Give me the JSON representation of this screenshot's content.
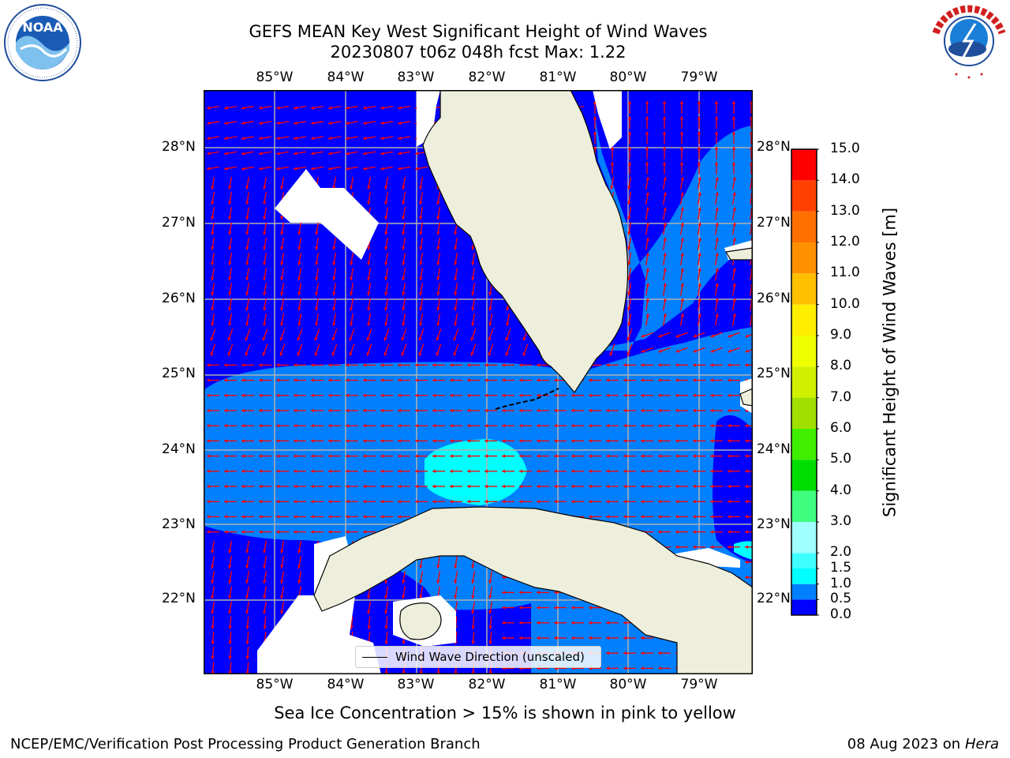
{
  "title_line1": "GEFS MEAN Key West Significant Height of Wind Waves",
  "title_line2": "20230807 t06z 048h fcst   Max: 1.22",
  "lon_labels": [
    "85°W",
    "84°W",
    "83°W",
    "82°W",
    "81°W",
    "80°W",
    "79°W"
  ],
  "lat_labels": [
    "28°N",
    "27°N",
    "26°N",
    "25°N",
    "24°N",
    "23°N",
    "22°N"
  ],
  "legend_label": "Wind Wave Direction (unscaled)",
  "colorbar": {
    "label": "Significant Height of Wind Waves [m]",
    "ticks": [
      "0.0",
      "0.5",
      "1.0",
      "1.5",
      "2.0",
      "3.0",
      "4.0",
      "5.0",
      "6.0",
      "7.0",
      "8.0",
      "9.0",
      "10.0",
      "11.0",
      "12.0",
      "13.0",
      "14.0",
      "15.0"
    ],
    "colors": [
      "#0000ff",
      "#0080ff",
      "#00ffff",
      "#40ffff",
      "#a0ffff",
      "#40ff80",
      "#00dd00",
      "#40ee00",
      "#a0e000",
      "#d0f000",
      "#f0ff00",
      "#ffee00",
      "#ffc000",
      "#ff9000",
      "#ff7000",
      "#ff4000",
      "#ff0000"
    ]
  },
  "caption": "Sea Ice Concentration > 15% is shown in pink to yellow",
  "footer_left": "NCEP/EMC/Verification Post Processing Product Generation Branch",
  "footer_right_date": "08 Aug 2023 on",
  "footer_right_host": "Hera",
  "logos": {
    "noaa": "NOAA",
    "nws": "NATIONAL WEATHER SERVICE"
  },
  "colors": {
    "land": "#eeeedc",
    "deep_blue": "#0000ff",
    "mid_blue": "#0080ff",
    "cyan": "#00ffff",
    "arrow": "#ff0000",
    "grid": "#b0b0b0"
  }
}
